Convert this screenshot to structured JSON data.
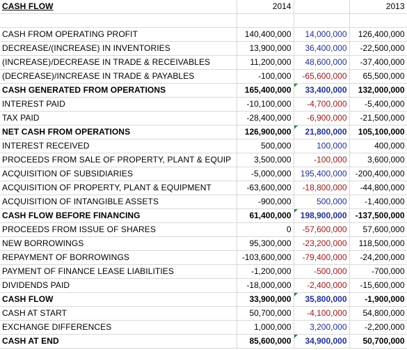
{
  "header": {
    "title": "CASH FLOW",
    "year_a": "2014",
    "year_b": "",
    "year_c": "2013"
  },
  "rows": [
    {
      "label": "CASH FROM OPERATING PROFIT",
      "v2014": "140,400,000",
      "delta": "14,000,000",
      "delta_sign": "pos",
      "v2013": "126,400,000",
      "bold": false,
      "flag": false
    },
    {
      "label": "DECREASE/(INCREASE) IN INVENTORIES",
      "v2014": "13,900,000",
      "delta": "36,400,000",
      "delta_sign": "pos",
      "v2013": "-22,500,000",
      "bold": false,
      "flag": false
    },
    {
      "label": "(INCREASE)/DECREASE IN TRADE & RECEIVABLES",
      "v2014": "11,200,000",
      "delta": "48,600,000",
      "delta_sign": "pos",
      "v2013": "-37,400,000",
      "bold": false,
      "flag": false
    },
    {
      "label": "(DECREASE)/INCREASE IN TRADE & PAYABLES",
      "v2014": "-100,000",
      "delta": "-65,600,000",
      "delta_sign": "neg",
      "v2013": "65,500,000",
      "bold": false,
      "flag": false
    },
    {
      "label": "CASH GENERATED FROM OPERATIONS",
      "v2014": "165,400,000",
      "delta": "33,400,000",
      "delta_sign": "pos",
      "v2013": "132,000,000",
      "bold": true,
      "flag": true
    },
    {
      "label": "INTEREST PAID",
      "v2014": "-10,100,000",
      "delta": "-4,700,000",
      "delta_sign": "neg",
      "v2013": "-5,400,000",
      "bold": false,
      "flag": false
    },
    {
      "label": "TAX PAID",
      "v2014": "-28,400,000",
      "delta": "-6,900,000",
      "delta_sign": "neg",
      "v2013": "-21,500,000",
      "bold": false,
      "flag": false
    },
    {
      "label": "NET CASH FROM OPERATIONS",
      "v2014": "126,900,000",
      "delta": "21,800,000",
      "delta_sign": "pos",
      "v2013": "105,100,000",
      "bold": true,
      "flag": true
    },
    {
      "label": "INTEREST RECEIVED",
      "v2014": "500,000",
      "delta": "100,000",
      "delta_sign": "pos",
      "v2013": "400,000",
      "bold": false,
      "flag": false
    },
    {
      "label": "PROCEEDS FROM SALE OF PROPERTY, PLANT & EQUIP",
      "v2014": "3,500,000",
      "delta": "-100,000",
      "delta_sign": "neg",
      "v2013": "3,600,000",
      "bold": false,
      "flag": false
    },
    {
      "label": "ACQUISITION OF SUBSIDIARIES",
      "v2014": "-5,000,000",
      "delta": "195,400,000",
      "delta_sign": "pos",
      "v2013": "-200,400,000",
      "bold": false,
      "flag": false
    },
    {
      "label": "ACQUISITION OF PROPERTY, PLANT & EQUIPMENT",
      "v2014": "-63,600,000",
      "delta": "-18,800,000",
      "delta_sign": "neg",
      "v2013": "-44,800,000",
      "bold": false,
      "flag": false
    },
    {
      "label": "ACQUISITION OF INTANGIBLE ASSETS",
      "v2014": "-900,000",
      "delta": "500,000",
      "delta_sign": "pos",
      "v2013": "-1,400,000",
      "bold": false,
      "flag": false
    },
    {
      "label": "CASH FLOW BEFORE FINANCING",
      "v2014": "61,400,000",
      "delta": "198,900,000",
      "delta_sign": "pos",
      "v2013": "-137,500,000",
      "bold": true,
      "flag": true
    },
    {
      "label": "PROCEEDS FROM ISSUE OF SHARES",
      "v2014": "0",
      "delta": "-57,600,000",
      "delta_sign": "neg",
      "v2013": "57,600,000",
      "bold": false,
      "flag": false
    },
    {
      "label": "NEW BORROWINGS",
      "v2014": "95,300,000",
      "delta": "-23,200,000",
      "delta_sign": "neg",
      "v2013": "118,500,000",
      "bold": false,
      "flag": false
    },
    {
      "label": "REPAYMENT OF BORROWINGS",
      "v2014": "-103,600,000",
      "delta": "-79,400,000",
      "delta_sign": "neg",
      "v2013": "-24,200,000",
      "bold": false,
      "flag": false
    },
    {
      "label": "PAYMENT OF FINANCE LEASE LIABILITIES",
      "v2014": "-1,200,000",
      "delta": "-500,000",
      "delta_sign": "neg",
      "v2013": "-700,000",
      "bold": false,
      "flag": false
    },
    {
      "label": "DIVIDENDS PAID",
      "v2014": "-18,000,000",
      "delta": "-2,400,000",
      "delta_sign": "neg",
      "v2013": "-15,600,000",
      "bold": false,
      "flag": false
    },
    {
      "label": "CASH FLOW",
      "v2014": "33,900,000",
      "delta": "35,800,000",
      "delta_sign": "pos",
      "v2013": "-1,900,000",
      "bold": true,
      "flag": true
    },
    {
      "label": "CASH AT START",
      "v2014": "50,700,000",
      "delta": "-4,100,000",
      "delta_sign": "neg",
      "v2013": "54,800,000",
      "bold": false,
      "flag": false
    },
    {
      "label": "EXCHANGE DIFFERENCES",
      "v2014": "1,000,000",
      "delta": "3,200,000",
      "delta_sign": "pos",
      "v2013": "-2,200,000",
      "bold": false,
      "flag": false
    },
    {
      "label": "CASH AT END",
      "v2014": "85,600,000",
      "delta": "34,900,000",
      "delta_sign": "pos",
      "v2013": "50,700,000",
      "bold": true,
      "flag": true
    }
  ],
  "colors": {
    "positive_delta": "#1f2f9a",
    "negative_delta": "#a01818",
    "gridline": "#d9d9d9",
    "flag": "#1e8a2e"
  }
}
